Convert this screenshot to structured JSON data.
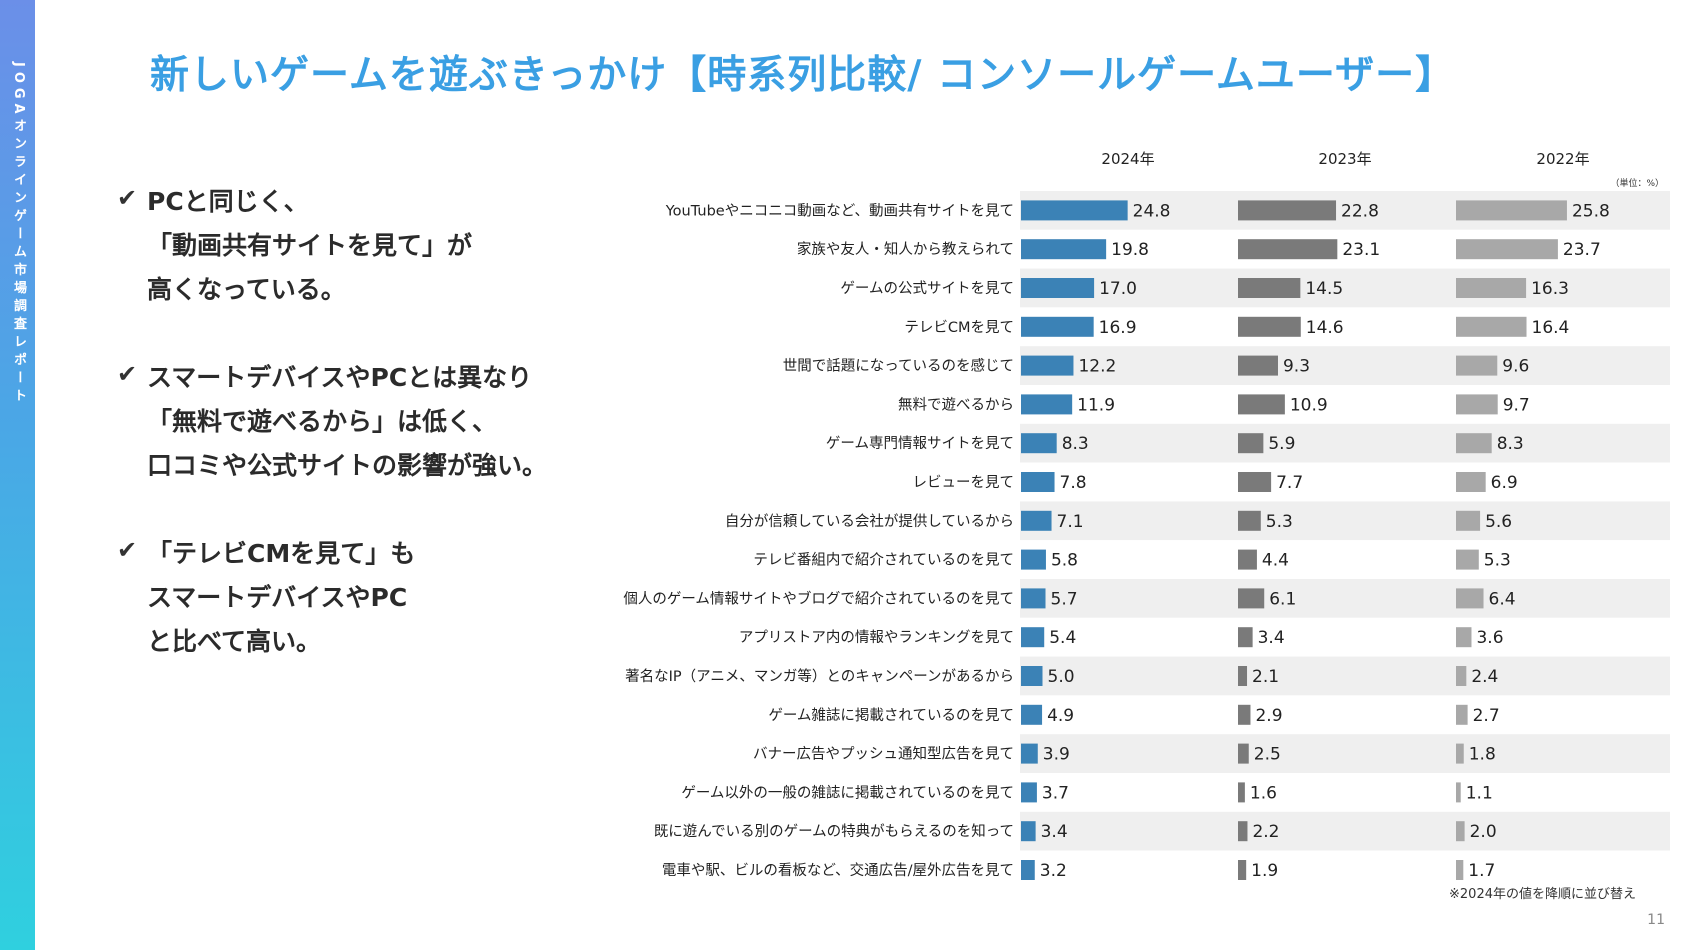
{
  "sidebar": {
    "text": "JOGAオンラインゲーム市場調査レポート"
  },
  "title": "新しいゲームを遊ぶきっかけ【時系列比較/ コンソールゲームユーザー】",
  "bullets": [
    {
      "lines": [
        "PCと同じく、",
        "「動画共有サイトを見て」が",
        "高くなっている。"
      ]
    },
    {
      "lines": [
        "スマートデバイスやPCとは異なり",
        "「無料で遊べるから」は低く、",
        "口コミや公式サイトの影響が強い。"
      ]
    },
    {
      "lines": [
        "「テレビCMを見て」も",
        "スマートデバイスやPC",
        "と比べて高い。"
      ]
    }
  ],
  "bullet_icon": "check-icon",
  "page_number": "11",
  "chart_data": {
    "type": "bar",
    "orientation": "horizontal",
    "unit_note": "（単位：%）",
    "footnote": "※2024年の値を降順に並び替え",
    "categories": [
      "YouTubeやニコニコ動画など、動画共有サイトを見て",
      "家族や友人・知人から教えられて",
      "ゲームの公式サイトを見て",
      "テレビCMを見て",
      "世間で話題になっているのを感じて",
      "無料で遊べるから",
      "ゲーム専門情報サイトを見て",
      "レビューを見て",
      "自分が信頼している会社が提供しているから",
      "テレビ番組内で紹介されているのを見て",
      "個人のゲーム情報サイトやブログで紹介されているのを見て",
      "アプリストア内の情報やランキングを見て",
      "著名なIP（アニメ、マンガ等）とのキャンペーンがあるから",
      "ゲーム雑誌に掲載されているのを見て",
      "バナー広告やプッシュ通知型広告を見て",
      "ゲーム以外の一般の雑誌に掲載されているのを見て",
      "既に遊んでいる別のゲームの特典がもらえるのを知って",
      "電車や駅、ビルの看板など、交通広告/屋外広告を見て"
    ],
    "series": [
      {
        "name": "2024年",
        "color": "#3b82b6",
        "values": [
          24.8,
          19.8,
          17.0,
          16.9,
          12.2,
          11.9,
          8.3,
          7.8,
          7.1,
          5.8,
          5.7,
          5.4,
          5.0,
          4.9,
          3.9,
          3.7,
          3.4,
          3.2
        ]
      },
      {
        "name": "2023年",
        "color": "#7a7a7a",
        "values": [
          22.8,
          23.1,
          14.5,
          14.6,
          9.3,
          10.9,
          5.9,
          7.7,
          5.3,
          4.4,
          6.1,
          3.4,
          2.1,
          2.9,
          2.5,
          1.6,
          2.2,
          1.9
        ]
      },
      {
        "name": "2022年",
        "color": "#a8a8a8",
        "values": [
          25.8,
          23.7,
          16.3,
          16.4,
          9.6,
          9.7,
          8.3,
          6.9,
          5.6,
          5.3,
          6.4,
          3.6,
          2.4,
          2.7,
          1.8,
          1.1,
          2.0,
          1.7
        ]
      }
    ],
    "row_band_colors": [
      "#efefef",
      "#ffffff"
    ]
  }
}
